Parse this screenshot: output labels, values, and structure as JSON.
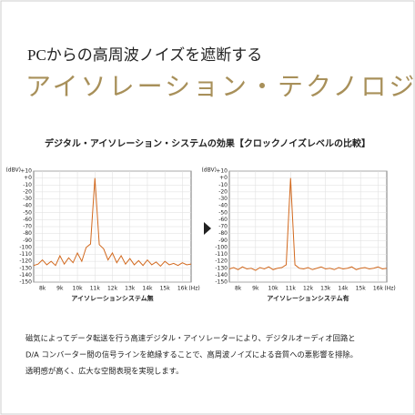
{
  "header": {
    "subtitle": "PCからの高周波ノイズを遮断する",
    "title": "アイソレーション・テクノロジー"
  },
  "section_title": "デジタル・アイソレーション・システムの効果【クロックノイズレベルの比較】",
  "body": [
    "磁気によってデータ転送を行う高速デジタル・アイソレーターにより、デジタルオーディオ回路と",
    "D/A コンバーター間の信号ラインを絶縁することで、高周波ノイズによる音質への悪影響を排除。",
    "透明感が高く、広大な空間表現を実現します。"
  ],
  "chart_data": [
    {
      "type": "line",
      "xlabel": "アイソレーションシステム無",
      "ylabel": "(dBV)",
      "x_unit": "(Hz)",
      "color": "#d2691e",
      "grid": true,
      "x": [
        7.5,
        7.75,
        8,
        8.25,
        8.5,
        8.75,
        9,
        9.25,
        9.5,
        9.75,
        10,
        10.25,
        10.5,
        10.75,
        11,
        11.25,
        11.5,
        11.75,
        12,
        12.25,
        12.5,
        12.75,
        13,
        13.25,
        13.5,
        13.75,
        14,
        14.25,
        14.5,
        14.75,
        15,
        15.25,
        15.5,
        15.75,
        16,
        16.25,
        16.5
      ],
      "values": [
        -126,
        -124,
        -118,
        -125,
        -120,
        -126,
        -112,
        -124,
        -115,
        -122,
        -108,
        -120,
        -100,
        -95,
        0,
        -96,
        -102,
        -118,
        -108,
        -122,
        -112,
        -124,
        -116,
        -125,
        -119,
        -126,
        -118,
        -125,
        -121,
        -127,
        -120,
        -125,
        -123,
        -126,
        -122,
        -125,
        -124
      ],
      "xlim": [
        7.5,
        16.5
      ],
      "ylim": [
        -150,
        10
      ],
      "xticks": [
        {
          "value": 8,
          "label": "8k"
        },
        {
          "value": 9,
          "label": "9k"
        },
        {
          "value": 10,
          "label": "10k"
        },
        {
          "value": 11,
          "label": "11k"
        },
        {
          "value": 12,
          "label": "12k"
        },
        {
          "value": 13,
          "label": "13k"
        },
        {
          "value": 14,
          "label": "14k"
        },
        {
          "value": 15,
          "label": "15k"
        },
        {
          "value": 16,
          "label": "16k"
        }
      ],
      "yticks": [
        {
          "value": 10,
          "label": "+10"
        },
        {
          "value": 0,
          "label": "+0"
        },
        -10,
        -20,
        -30,
        -40,
        -50,
        -60,
        -70,
        -80,
        -90,
        -100,
        -110,
        -120,
        -130,
        -140,
        -150
      ]
    },
    {
      "type": "line",
      "xlabel": "アイソレーションシステム有",
      "ylabel": "(dBV)",
      "x_unit": "(Hz)",
      "color": "#d2691e",
      "grid": true,
      "x": [
        7.5,
        7.75,
        8,
        8.25,
        8.5,
        8.75,
        9,
        9.25,
        9.5,
        9.75,
        10,
        10.25,
        10.5,
        10.75,
        11,
        11.25,
        11.5,
        11.75,
        12,
        12.25,
        12.5,
        12.75,
        13,
        13.25,
        13.5,
        13.75,
        14,
        14.25,
        14.5,
        14.75,
        15,
        15.25,
        15.5,
        15.75,
        16,
        16.25,
        16.5
      ],
      "values": [
        -131,
        -129,
        -132,
        -128,
        -131,
        -130,
        -133,
        -129,
        -131,
        -128,
        -132,
        -130,
        -129,
        -125,
        0,
        -125,
        -130,
        -131,
        -129,
        -132,
        -130,
        -128,
        -131,
        -130,
        -132,
        -129,
        -131,
        -130,
        -128,
        -132,
        -130,
        -129,
        -131,
        -130,
        -128,
        -131,
        -130
      ],
      "xlim": [
        7.5,
        16.5
      ],
      "ylim": [
        -150,
        10
      ],
      "xticks": [
        {
          "value": 8,
          "label": "8k"
        },
        {
          "value": 9,
          "label": "9k"
        },
        {
          "value": 10,
          "label": "10k"
        },
        {
          "value": 11,
          "label": "11k"
        },
        {
          "value": 12,
          "label": "12k"
        },
        {
          "value": 13,
          "label": "13k"
        },
        {
          "value": 14,
          "label": "14k"
        },
        {
          "value": 15,
          "label": "15k"
        },
        {
          "value": 16,
          "label": "16k"
        }
      ],
      "yticks": [
        {
          "value": 10,
          "label": "+10"
        },
        {
          "value": 0,
          "label": "+0"
        },
        -10,
        -20,
        -30,
        -40,
        -50,
        -60,
        -70,
        -80,
        -90,
        -100,
        -110,
        -120,
        -130,
        -140,
        -150
      ]
    }
  ]
}
